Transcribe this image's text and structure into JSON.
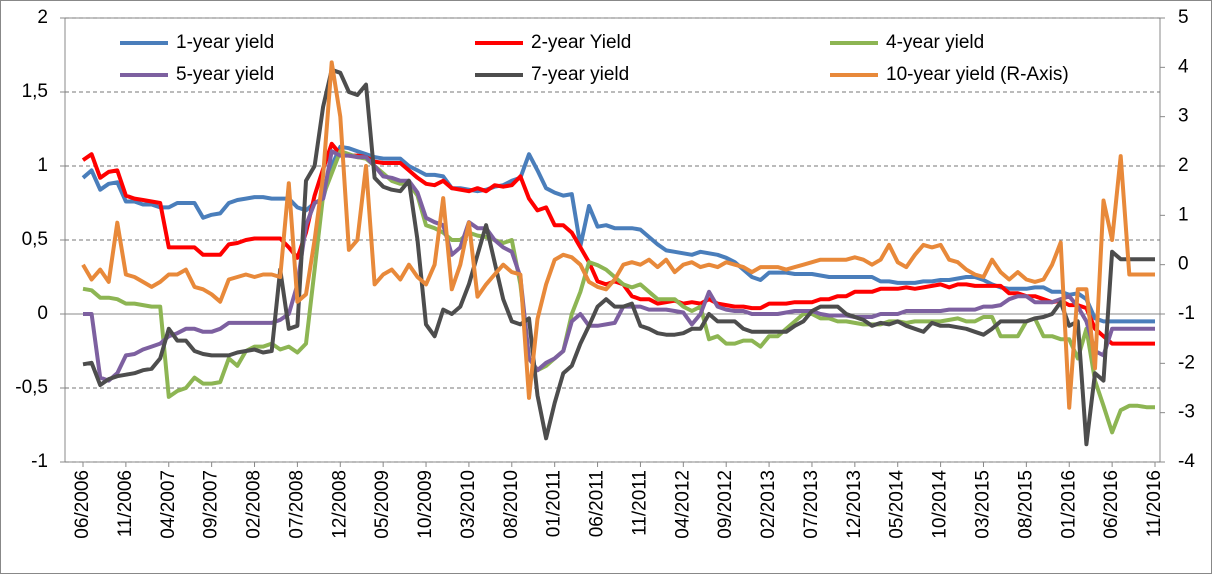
{
  "chart_data": {
    "type": "line",
    "categories": [
      "06/2006",
      null,
      null,
      null,
      null,
      "11/2006",
      null,
      null,
      null,
      null,
      "04/2007",
      null,
      null,
      null,
      null,
      "09/2007",
      null,
      null,
      null,
      null,
      "02/2008",
      null,
      null,
      null,
      null,
      "07/2008",
      null,
      null,
      null,
      null,
      "12/2008",
      null,
      null,
      null,
      null,
      "05/2009",
      null,
      null,
      null,
      null,
      "10/2009",
      null,
      null,
      null,
      null,
      "03/2010",
      null,
      null,
      null,
      null,
      "08/2010",
      null,
      null,
      null,
      null,
      "01/2011",
      null,
      null,
      null,
      null,
      "06/2011",
      null,
      null,
      null,
      null,
      "11/2011",
      null,
      null,
      null,
      null,
      "04/2012",
      null,
      null,
      null,
      null,
      "09/2012",
      null,
      null,
      null,
      null,
      "02/2013",
      null,
      null,
      null,
      null,
      "07/2013",
      null,
      null,
      null,
      null,
      "12/2013",
      null,
      null,
      null,
      null,
      "05/2014",
      null,
      null,
      null,
      null,
      "10/2014",
      null,
      null,
      null,
      null,
      "03/2015",
      null,
      null,
      null,
      null,
      "08/2015",
      null,
      null,
      null,
      null,
      "01/2016",
      null,
      null,
      null,
      null,
      "06/2016",
      null,
      null,
      null,
      null,
      "11/2016"
    ],
    "series": [
      {
        "name": "1-year yield",
        "color": "#4a7ebb",
        "values": [
          0.92,
          0.97,
          0.84,
          0.88,
          0.89,
          0.76,
          0.76,
          0.74,
          0.74,
          0.72,
          0.72,
          0.75,
          0.75,
          0.75,
          0.65,
          0.67,
          0.68,
          0.75,
          0.77,
          0.78,
          0.79,
          0.79,
          0.78,
          0.78,
          0.78,
          0.72,
          0.7,
          0.75,
          0.78,
          1.0,
          1.13,
          1.12,
          1.1,
          1.08,
          1.06,
          1.05,
          1.05,
          1.05,
          1.0,
          0.97,
          0.94,
          0.94,
          0.93,
          0.85,
          0.85,
          0.84,
          0.83,
          0.84,
          0.86,
          0.87,
          0.9,
          0.92,
          1.08,
          0.97,
          0.85,
          0.82,
          0.8,
          0.81,
          0.46,
          0.73,
          0.59,
          0.6,
          0.58,
          0.58,
          0.58,
          0.57,
          0.52,
          0.47,
          0.43,
          0.42,
          0.41,
          0.4,
          0.42,
          0.41,
          0.4,
          0.38,
          0.35,
          0.3,
          0.25,
          0.23,
          0.28,
          0.28,
          0.28,
          0.27,
          0.27,
          0.27,
          0.26,
          0.25,
          0.25,
          0.25,
          0.25,
          0.25,
          0.25,
          0.22,
          0.22,
          0.21,
          0.21,
          0.21,
          0.22,
          0.22,
          0.23,
          0.23,
          0.24,
          0.25,
          0.25,
          0.23,
          0.2,
          0.18,
          0.17,
          0.17,
          0.17,
          0.18,
          0.18,
          0.15,
          0.15,
          0.13,
          0.14,
          0.1,
          -0.03,
          -0.05,
          -0.05,
          -0.05,
          -0.05,
          -0.05,
          -0.05,
          -0.05
        ]
      },
      {
        "name": "2-year Yield",
        "color": "#ff0000",
        "values": [
          1.04,
          1.08,
          0.92,
          0.96,
          0.97,
          0.8,
          0.78,
          0.77,
          0.76,
          0.75,
          0.45,
          0.45,
          0.45,
          0.45,
          0.4,
          0.4,
          0.4,
          0.47,
          0.48,
          0.5,
          0.51,
          0.51,
          0.51,
          0.51,
          0.45,
          0.38,
          0.55,
          0.8,
          0.98,
          1.15,
          1.08,
          1.07,
          1.07,
          1.06,
          1.03,
          1.02,
          1.02,
          1.02,
          0.97,
          0.92,
          0.88,
          0.87,
          0.9,
          0.85,
          0.84,
          0.83,
          0.85,
          0.83,
          0.87,
          0.86,
          0.87,
          0.93,
          0.78,
          0.7,
          0.72,
          0.6,
          0.6,
          0.55,
          0.45,
          0.35,
          0.22,
          0.2,
          0.22,
          0.2,
          0.12,
          0.1,
          0.1,
          0.07,
          0.08,
          0.09,
          0.07,
          0.08,
          0.07,
          0.1,
          0.07,
          0.06,
          0.05,
          0.05,
          0.04,
          0.04,
          0.07,
          0.07,
          0.07,
          0.08,
          0.08,
          0.08,
          0.1,
          0.1,
          0.12,
          0.12,
          0.15,
          0.15,
          0.15,
          0.17,
          0.17,
          0.17,
          0.18,
          0.17,
          0.18,
          0.19,
          0.2,
          0.18,
          0.2,
          0.2,
          0.19,
          0.19,
          0.19,
          0.19,
          0.14,
          0.14,
          0.12,
          0.12,
          0.1,
          0.08,
          0.09,
          0.06,
          0.06,
          0.04,
          -0.1,
          -0.15,
          -0.2,
          -0.2,
          -0.2,
          -0.2,
          -0.2,
          -0.2
        ]
      },
      {
        "name": "4-year yield",
        "color": "#8db553",
        "values": [
          0.17,
          0.16,
          0.11,
          0.11,
          0.1,
          0.07,
          0.07,
          0.06,
          0.05,
          0.05,
          -0.56,
          -0.52,
          -0.5,
          -0.43,
          -0.47,
          -0.47,
          -0.46,
          -0.3,
          -0.35,
          -0.25,
          -0.22,
          -0.22,
          -0.2,
          -0.24,
          -0.22,
          -0.26,
          -0.2,
          0.3,
          0.8,
          0.95,
          1.1,
          1.08,
          1.06,
          1.05,
          1.0,
          0.95,
          0.9,
          0.88,
          0.88,
          0.8,
          0.6,
          0.58,
          0.55,
          0.5,
          0.5,
          0.55,
          0.53,
          0.52,
          0.5,
          0.48,
          0.5,
          0.2,
          -0.3,
          -0.38,
          -0.35,
          -0.3,
          -0.25,
          0.0,
          0.15,
          0.35,
          0.33,
          0.3,
          0.25,
          0.2,
          0.18,
          0.2,
          0.15,
          0.1,
          0.1,
          0.1,
          0.05,
          0.02,
          0.05,
          -0.17,
          -0.15,
          -0.2,
          -0.2,
          -0.18,
          -0.18,
          -0.22,
          -0.15,
          -0.15,
          -0.1,
          -0.05,
          0.0,
          0.0,
          -0.03,
          -0.03,
          -0.05,
          -0.05,
          -0.06,
          -0.07,
          -0.07,
          -0.07,
          -0.05,
          -0.05,
          -0.06,
          -0.05,
          -0.05,
          -0.05,
          -0.05,
          -0.04,
          -0.03,
          -0.05,
          -0.05,
          -0.02,
          -0.02,
          -0.15,
          -0.15,
          -0.15,
          -0.05,
          -0.03,
          -0.15,
          -0.15,
          -0.17,
          -0.17,
          -0.3,
          -0.1,
          -0.45,
          -0.62,
          -0.8,
          -0.65,
          -0.62,
          -0.62,
          -0.63,
          -0.63
        ]
      },
      {
        "name": "5-year yield",
        "color": "#7d60a0",
        "values": [
          0.0,
          0.0,
          -0.43,
          -0.45,
          -0.4,
          -0.28,
          -0.27,
          -0.24,
          -0.22,
          -0.2,
          -0.15,
          -0.13,
          -0.1,
          -0.1,
          -0.12,
          -0.12,
          -0.1,
          -0.06,
          -0.06,
          -0.06,
          -0.06,
          -0.06,
          -0.06,
          -0.04,
          0.0,
          0.2,
          0.6,
          0.75,
          0.78,
          1.1,
          1.07,
          1.07,
          1.06,
          1.06,
          1.0,
          0.93,
          0.92,
          0.9,
          0.9,
          0.82,
          0.65,
          0.62,
          0.6,
          0.4,
          0.45,
          0.62,
          0.58,
          0.58,
          0.5,
          0.45,
          0.42,
          0.25,
          -0.3,
          -0.38,
          -0.33,
          -0.3,
          -0.25,
          -0.05,
          0.0,
          -0.08,
          -0.08,
          -0.07,
          -0.06,
          0.05,
          0.05,
          0.05,
          0.03,
          0.03,
          0.03,
          0.02,
          0.01,
          -0.07,
          0.0,
          0.15,
          0.05,
          0.03,
          0.02,
          0.02,
          0.0,
          0.0,
          0.0,
          0.0,
          0.01,
          0.02,
          0.02,
          0.02,
          0.0,
          -0.01,
          -0.01,
          -0.01,
          -0.02,
          -0.02,
          -0.02,
          0.0,
          0.0,
          0.0,
          0.02,
          0.02,
          0.02,
          0.02,
          0.02,
          0.03,
          0.03,
          0.03,
          0.03,
          0.05,
          0.05,
          0.06,
          0.1,
          0.12,
          0.12,
          0.08,
          0.08,
          0.08,
          0.1,
          0.12,
          0.05,
          -0.05,
          -0.25,
          -0.28,
          -0.1,
          -0.1,
          -0.1,
          -0.1,
          -0.1,
          -0.1
        ]
      },
      {
        "name": "7-year yield",
        "color": "#4d4d4d",
        "values": [
          -0.34,
          -0.33,
          -0.48,
          -0.44,
          -0.42,
          -0.41,
          -0.4,
          -0.38,
          -0.37,
          -0.3,
          -0.1,
          -0.18,
          -0.18,
          -0.25,
          -0.27,
          -0.28,
          -0.28,
          -0.28,
          -0.26,
          -0.25,
          -0.24,
          -0.26,
          -0.25,
          0.3,
          -0.1,
          -0.08,
          0.9,
          1.0,
          1.4,
          1.65,
          1.63,
          1.5,
          1.48,
          1.55,
          0.92,
          0.86,
          0.84,
          0.83,
          0.9,
          0.5,
          -0.07,
          -0.15,
          0.03,
          0.0,
          0.05,
          0.2,
          0.4,
          0.6,
          0.35,
          0.1,
          -0.05,
          -0.07,
          -0.03,
          -0.55,
          -0.84,
          -0.6,
          -0.4,
          -0.35,
          -0.2,
          -0.08,
          0.05,
          0.1,
          0.05,
          0.05,
          0.07,
          -0.08,
          -0.1,
          -0.13,
          -0.14,
          -0.14,
          -0.13,
          -0.1,
          -0.1,
          0.0,
          -0.05,
          -0.05,
          -0.05,
          -0.1,
          -0.12,
          -0.12,
          -0.12,
          -0.12,
          -0.12,
          -0.08,
          -0.05,
          0.02,
          0.05,
          0.05,
          0.05,
          0.0,
          -0.02,
          -0.04,
          -0.08,
          -0.06,
          -0.07,
          -0.05,
          -0.08,
          -0.1,
          -0.12,
          -0.06,
          -0.08,
          -0.08,
          -0.09,
          -0.1,
          -0.12,
          -0.14,
          -0.1,
          -0.05,
          -0.05,
          -0.05,
          -0.05,
          -0.03,
          -0.02,
          0.0,
          0.08,
          -0.08,
          -0.05,
          -0.88,
          -0.4,
          -0.45,
          0.42,
          0.37,
          0.37,
          0.37,
          0.37,
          0.37
        ]
      },
      {
        "name": "10-year yield (R-Axis)",
        "color": "#e8893a",
        "axis": "y2",
        "values": [
          0.0,
          -0.3,
          -0.1,
          -0.35,
          0.85,
          -0.2,
          -0.25,
          -0.35,
          -0.45,
          -0.35,
          -0.2,
          -0.2,
          -0.1,
          -0.45,
          -0.5,
          -0.6,
          -0.75,
          -0.3,
          -0.25,
          -0.2,
          -0.25,
          -0.2,
          -0.2,
          -0.25,
          1.65,
          -0.75,
          -0.6,
          0.5,
          1.8,
          4.1,
          3.0,
          0.3,
          0.5,
          2.0,
          -0.4,
          -0.2,
          -0.1,
          -0.3,
          0.0,
          -0.25,
          -0.4,
          0.0,
          1.35,
          -0.5,
          0.0,
          0.85,
          -0.65,
          -0.4,
          -0.2,
          0.0,
          -0.15,
          -0.2,
          -2.7,
          -1.1,
          -0.4,
          0.1,
          0.2,
          0.15,
          0.0,
          -0.35,
          -0.45,
          -0.5,
          -0.3,
          0.0,
          0.05,
          0.0,
          0.1,
          -0.05,
          0.1,
          -0.15,
          0.0,
          0.05,
          -0.05,
          0.0,
          -0.05,
          0.05,
          0.0,
          -0.05,
          -0.15,
          -0.05,
          -0.05,
          -0.05,
          -0.1,
          -0.05,
          0.0,
          0.05,
          0.1,
          0.1,
          0.1,
          0.1,
          0.15,
          0.1,
          0.0,
          0.1,
          0.4,
          0.05,
          -0.05,
          0.2,
          0.4,
          0.35,
          0.4,
          0.1,
          0.05,
          -0.1,
          -0.2,
          -0.25,
          0.1,
          -0.15,
          -0.3,
          -0.15,
          -0.3,
          -0.35,
          -0.3,
          0.0,
          0.45,
          -2.9,
          -0.5,
          -0.5,
          -2.1,
          1.3,
          0.5,
          2.2,
          -0.2,
          -0.2,
          -0.2,
          -0.2
        ]
      }
    ],
    "ylim": [
      -1,
      2
    ],
    "yticks": [
      {
        "value": -1,
        "label": "-1"
      },
      {
        "value": -0.5,
        "label": "-0,5"
      },
      0,
      {
        "value": 0.5,
        "label": "0,5"
      },
      1,
      {
        "value": 1.5,
        "label": "1,5"
      },
      2
    ],
    "y2lim": [
      -4,
      5
    ],
    "y2ticks": [
      -4,
      -3,
      -2,
      -1,
      0,
      1,
      2,
      3,
      4,
      5
    ],
    "grid": true,
    "legend": "top"
  }
}
